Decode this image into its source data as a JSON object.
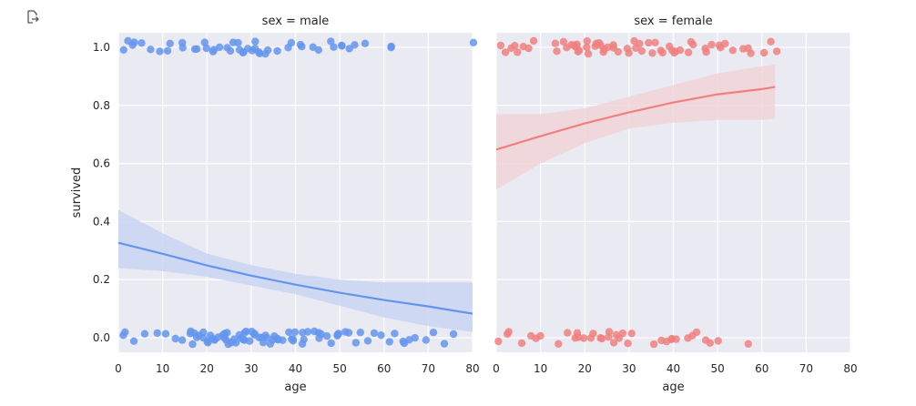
{
  "output_icon": "output-arrow-icon",
  "chart_data": {
    "type": "scatter",
    "layout": "facet-columns",
    "xlabel": "age",
    "ylabel": "survived",
    "xlim": [
      0,
      80
    ],
    "ylim": [
      -0.05,
      1.05
    ],
    "xticks": [
      0,
      10,
      20,
      30,
      40,
      50,
      60,
      70,
      80
    ],
    "yticks": [
      0.0,
      0.2,
      0.4,
      0.6,
      0.8,
      1.0
    ],
    "ytick_labels": [
      "0.0",
      "0.2",
      "0.4",
      "0.6",
      "0.8",
      "1.0"
    ],
    "grid": true,
    "panels": [
      {
        "title": "sex = male",
        "color": "#6495ed",
        "band_color": "#c9d5f2",
        "points_survived": [
          1,
          2,
          3,
          4,
          5,
          7,
          9,
          11,
          12,
          14,
          15,
          17,
          18,
          19,
          20,
          21,
          22,
          23,
          24,
          25,
          26,
          27,
          27,
          28,
          28,
          29,
          30,
          31,
          31,
          32,
          32,
          33,
          34,
          36,
          38,
          39,
          41,
          42,
          44,
          45,
          48,
          49,
          50,
          51,
          52,
          53,
          56,
          61,
          62,
          80
        ],
        "points_died": [
          1,
          2,
          4,
          6,
          9,
          11,
          13,
          15,
          16,
          16,
          17,
          17,
          18,
          18,
          19,
          19,
          20,
          20,
          21,
          21,
          22,
          22,
          23,
          23,
          24,
          24,
          24,
          25,
          25,
          26,
          26,
          27,
          27,
          28,
          28,
          28,
          29,
          29,
          30,
          30,
          31,
          31,
          32,
          32,
          33,
          33,
          34,
          34,
          35,
          35,
          36,
          36,
          37,
          38,
          39,
          39,
          40,
          40,
          41,
          42,
          42,
          43,
          44,
          45,
          45,
          46,
          47,
          48,
          49,
          50,
          50,
          51,
          52,
          54,
          55,
          56,
          58,
          59,
          61,
          62,
          64,
          65,
          66,
          67,
          70,
          71,
          74,
          76
        ],
        "fit": {
          "x": [
            0,
            10,
            20,
            30,
            40,
            50,
            60,
            70,
            80
          ],
          "y": [
            0.327,
            0.289,
            0.249,
            0.214,
            0.183,
            0.155,
            0.13,
            0.108,
            0.083
          ]
        },
        "ci": {
          "x": [
            0,
            10,
            20,
            30,
            40,
            50,
            60,
            70,
            80
          ],
          "lower": [
            0.24,
            0.23,
            0.21,
            0.18,
            0.15,
            0.11,
            0.07,
            0.04,
            0.02
          ],
          "upper": [
            0.44,
            0.36,
            0.29,
            0.25,
            0.22,
            0.2,
            0.19,
            0.19,
            0.19
          ]
        }
      },
      {
        "title": "sex = female",
        "color": "#f08080",
        "band_color": "#f0d3d8",
        "points_survived": [
          1,
          2,
          3,
          4,
          5,
          6,
          7,
          9,
          13,
          14,
          15,
          16,
          17,
          17,
          18,
          18,
          19,
          19,
          20,
          21,
          21,
          22,
          22,
          23,
          23,
          24,
          24,
          25,
          26,
          27,
          28,
          29,
          30,
          31,
          31,
          32,
          33,
          35,
          35,
          36,
          37,
          38,
          39,
          40,
          40,
          41,
          42,
          43,
          44,
          45,
          47,
          48,
          49,
          50,
          51,
          52,
          54,
          56,
          57,
          58,
          60,
          62,
          63
        ],
        "points_died": [
          1,
          2,
          3,
          6,
          8,
          9,
          10,
          14,
          16,
          18,
          18,
          19,
          20,
          21,
          22,
          23,
          24,
          25,
          25,
          26,
          27,
          28,
          29,
          30,
          31,
          36,
          37,
          38,
          39,
          40,
          41,
          43,
          44,
          45,
          47,
          48,
          50,
          57
        ],
        "fit": {
          "x": [
            0,
            10,
            20,
            30,
            40,
            50,
            60,
            63
          ],
          "y": [
            0.648,
            0.694,
            0.738,
            0.776,
            0.81,
            0.838,
            0.856,
            0.864
          ]
        },
        "ci": {
          "x": [
            0,
            10,
            20,
            30,
            40,
            50,
            60,
            63
          ],
          "lower": [
            0.51,
            0.6,
            0.67,
            0.72,
            0.74,
            0.75,
            0.75,
            0.755
          ],
          "upper": [
            0.77,
            0.77,
            0.79,
            0.83,
            0.87,
            0.91,
            0.935,
            0.94
          ]
        }
      }
    ]
  }
}
